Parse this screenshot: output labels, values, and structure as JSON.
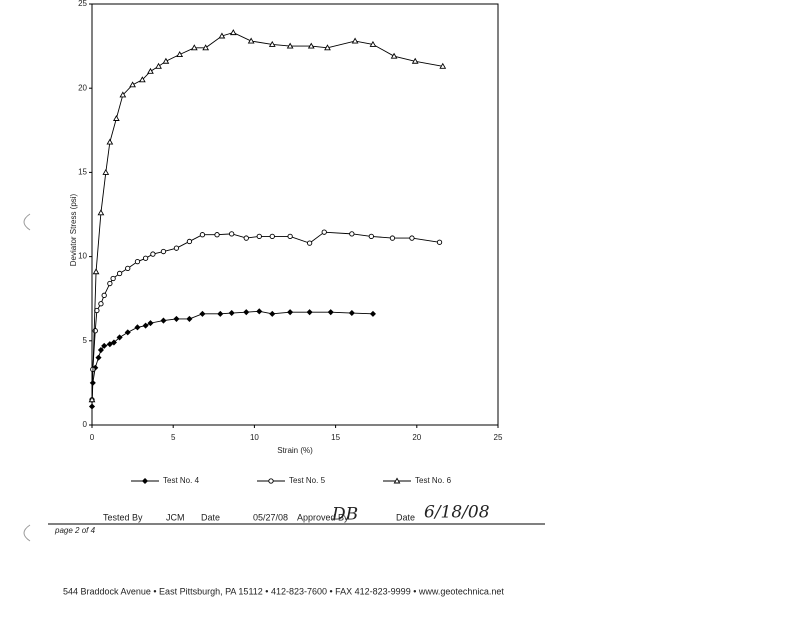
{
  "chart_data": {
    "type": "scatter",
    "xlabel": "Strain (%)",
    "ylabel": "Deviator Stress (psi)",
    "xlim": [
      0,
      25
    ],
    "ylim": [
      0,
      25
    ],
    "xticks": [
      0,
      5,
      10,
      15,
      20,
      25
    ],
    "yticks": [
      0,
      5,
      10,
      15,
      20,
      25
    ],
    "grid": false,
    "series": [
      {
        "name": "Test No. 4",
        "color": "#000000",
        "marker": "diamond",
        "x": [
          0,
          0.05,
          0.2,
          0.4,
          0.55,
          0.75,
          1.1,
          1.35,
          1.7,
          2.2,
          2.8,
          3.3,
          3.6,
          4.4,
          5.2,
          6.0,
          6.8,
          7.9,
          8.6,
          9.5,
          10.3,
          11.1,
          12.2,
          13.4,
          14.7,
          16.0,
          17.3
        ],
        "values": [
          1.1,
          2.5,
          3.4,
          4.0,
          4.45,
          4.7,
          4.8,
          4.9,
          5.2,
          5.5,
          5.8,
          5.9,
          6.05,
          6.2,
          6.3,
          6.3,
          6.6,
          6.6,
          6.65,
          6.7,
          6.75,
          6.6,
          6.7,
          6.7,
          6.7,
          6.65,
          6.6
        ]
      },
      {
        "name": "Test No. 5",
        "color": "#000000",
        "marker": "circle",
        "x": [
          0,
          0.05,
          0.2,
          0.3,
          0.55,
          0.75,
          1.1,
          1.3,
          1.7,
          2.2,
          2.8,
          3.3,
          3.75,
          4.4,
          5.2,
          6.0,
          6.8,
          7.7,
          8.6,
          9.5,
          10.3,
          11.1,
          12.2,
          13.4,
          14.3,
          16.0,
          17.2,
          18.5,
          19.7,
          21.4
        ],
        "values": [
          1.5,
          3.3,
          5.6,
          6.8,
          7.2,
          7.7,
          8.4,
          8.7,
          9.0,
          9.3,
          9.7,
          9.9,
          10.15,
          10.3,
          10.5,
          10.9,
          11.3,
          11.3,
          11.35,
          11.1,
          11.2,
          11.2,
          11.2,
          10.8,
          11.45,
          11.35,
          11.2,
          11.1,
          11.1,
          10.85
        ]
      },
      {
        "name": "Test No. 6",
        "color": "#000000",
        "marker": "triangle",
        "x": [
          0,
          0.25,
          0.55,
          0.85,
          1.1,
          1.5,
          1.9,
          2.5,
          3.1,
          3.6,
          4.1,
          4.55,
          5.4,
          6.3,
          7.0,
          8.0,
          8.7,
          9.8,
          11.1,
          12.2,
          13.5,
          14.5,
          16.2,
          17.3,
          18.6,
          19.9,
          21.6
        ],
        "values": [
          1.5,
          9.1,
          12.6,
          15.0,
          16.8,
          18.2,
          19.6,
          20.2,
          20.5,
          21.0,
          21.3,
          21.6,
          22.0,
          22.4,
          22.4,
          23.1,
          23.3,
          22.8,
          22.6,
          22.5,
          22.5,
          22.4,
          22.8,
          22.6,
          21.9,
          21.6,
          21.3
        ]
      }
    ]
  },
  "document": {
    "tested_by_label": "Tested By",
    "tested_by": "JCM",
    "tested_date_label": "Date",
    "tested_date": "05/27/08",
    "approved_by_label": "Approved By",
    "approved_by": "DB",
    "approved_date_label": "Date",
    "approved_date": "6/18/08",
    "page": "page 2 of 4",
    "footer": "544 Braddock Avenue  •  East Pittsburgh, PA 15112  •  412-823-7600  •  FAX 412-823-9999  •  www.geotechnica.net"
  }
}
